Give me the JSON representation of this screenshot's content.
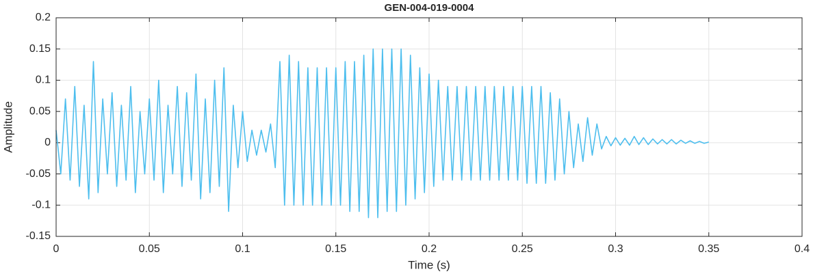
{
  "chart_data": {
    "type": "line",
    "title": "GEN-004-019-0004",
    "x_label": "Time (s)",
    "y_label": "Amplitude",
    "x": [
      0,
      0.0025,
      0.005,
      0.0075,
      0.01,
      0.0125,
      0.015,
      0.0175,
      0.02,
      0.0225,
      0.025,
      0.0275,
      0.03,
      0.0325,
      0.035,
      0.0375,
      0.04,
      0.0425,
      0.045,
      0.0475,
      0.05,
      0.0525,
      0.055,
      0.0575,
      0.06,
      0.0625,
      0.065,
      0.0675,
      0.07,
      0.0725,
      0.075,
      0.0775,
      0.08,
      0.0825,
      0.085,
      0.0875,
      0.09,
      0.0925,
      0.095,
      0.0975,
      0.1,
      0.1025,
      0.105,
      0.1075,
      0.11,
      0.1125,
      0.115,
      0.1175,
      0.12,
      0.1225,
      0.125,
      0.1275,
      0.13,
      0.1325,
      0.135,
      0.1375,
      0.14,
      0.1425,
      0.145,
      0.1475,
      0.15,
      0.1525,
      0.155,
      0.1575,
      0.16,
      0.1625,
      0.165,
      0.1675,
      0.17,
      0.1725,
      0.175,
      0.1775,
      0.18,
      0.1825,
      0.185,
      0.1875,
      0.19,
      0.1925,
      0.195,
      0.1975,
      0.2,
      0.2025,
      0.205,
      0.2075,
      0.21,
      0.2125,
      0.215,
      0.2175,
      0.22,
      0.2225,
      0.225,
      0.2275,
      0.23,
      0.2325,
      0.235,
      0.2375,
      0.24,
      0.2425,
      0.245,
      0.2475,
      0.25,
      0.2525,
      0.255,
      0.2575,
      0.26,
      0.2625,
      0.265,
      0.2675,
      0.27,
      0.2725,
      0.275,
      0.2775,
      0.28,
      0.2825,
      0.285,
      0.2875,
      0.29,
      0.2925,
      0.295,
      0.2975,
      0.3,
      0.3025,
      0.305,
      0.3075,
      0.31,
      0.3125,
      0.315,
      0.3175,
      0.32,
      0.3225,
      0.325,
      0.3275,
      0.33,
      0.3325,
      0.335,
      0.3375,
      0.34,
      0.3425,
      0.345,
      0.3475,
      0.35
    ],
    "values": [
      0.02,
      -0.05,
      0.07,
      -0.06,
      0.09,
      -0.07,
      0.06,
      -0.09,
      0.13,
      -0.08,
      0.07,
      -0.05,
      0.08,
      -0.07,
      0.06,
      -0.06,
      0.09,
      -0.08,
      0.05,
      -0.05,
      0.07,
      -0.06,
      0.1,
      -0.08,
      0.06,
      -0.05,
      0.09,
      -0.07,
      0.08,
      -0.06,
      0.11,
      -0.09,
      0.07,
      -0.08,
      0.1,
      -0.07,
      0.12,
      -0.11,
      0.06,
      -0.04,
      0.05,
      -0.03,
      0.02,
      -0.02,
      0.02,
      -0.015,
      0.03,
      -0.04,
      0.13,
      -0.1,
      0.14,
      -0.1,
      0.13,
      -0.1,
      0.12,
      -0.1,
      0.12,
      -0.1,
      0.12,
      -0.1,
      0.12,
      -0.1,
      0.13,
      -0.11,
      0.13,
      -0.11,
      0.14,
      -0.12,
      0.15,
      -0.12,
      0.15,
      -0.11,
      0.15,
      -0.11,
      0.15,
      -0.1,
      0.14,
      -0.09,
      0.12,
      -0.08,
      0.11,
      -0.07,
      0.1,
      -0.06,
      0.09,
      -0.06,
      0.09,
      -0.06,
      0.09,
      -0.06,
      0.09,
      -0.06,
      0.09,
      -0.06,
      0.09,
      -0.06,
      0.09,
      -0.06,
      0.09,
      -0.06,
      0.09,
      -0.065,
      0.09,
      -0.065,
      0.09,
      -0.065,
      0.08,
      -0.06,
      0.07,
      -0.05,
      0.05,
      -0.04,
      0.03,
      -0.03,
      0.04,
      -0.02,
      0.03,
      -0.01,
      0.01,
      -0.005,
      0.008,
      -0.004,
      0.007,
      -0.004,
      0.01,
      -0.003,
      0.008,
      -0.003,
      0.006,
      -0.002,
      0.005,
      -0.002,
      0.005,
      -0.002,
      0.004,
      -0.001,
      0.003,
      -0.001,
      0.002,
      -0.001,
      0.001
    ],
    "color": "#4dbeee",
    "xlim": [
      0,
      0.4
    ],
    "xticks": [
      0,
      0.05,
      0.1,
      0.15,
      0.2,
      0.25,
      0.3,
      0.35,
      0.4
    ],
    "ylim": [
      -0.15,
      0.2
    ],
    "yticks": [
      -0.15,
      -0.1,
      -0.05,
      0,
      0.05,
      0.1,
      0.15,
      0.2
    ],
    "grid": true
  }
}
